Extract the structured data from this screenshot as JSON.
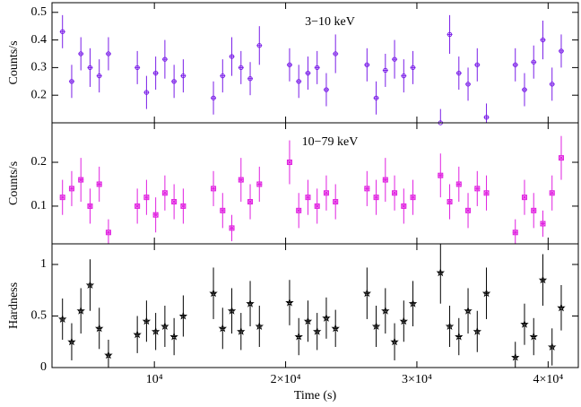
{
  "chart_data": [
    {
      "type": "scatter",
      "ylabel": "Counts/s",
      "annotation": "3−10 keV",
      "color": "#7a1ee8",
      "marker": "circle",
      "xlim": [
        2200,
        42300
      ],
      "ylim": [
        0.1,
        0.535
      ],
      "yticks": [
        0.2,
        0.3,
        0.4,
        0.5
      ],
      "x": [
        3000,
        3700,
        4400,
        5100,
        5800,
        6500,
        8700,
        9400,
        10100,
        10800,
        11500,
        12200,
        14500,
        15200,
        15900,
        16600,
        17300,
        18000,
        20300,
        21000,
        21700,
        22400,
        23100,
        23800,
        26200,
        26900,
        27600,
        28300,
        29000,
        29700,
        31800,
        32500,
        33200,
        33900,
        34600,
        35300,
        37500,
        38200,
        38900,
        39600,
        40300,
        41000
      ],
      "values": [
        0.43,
        0.25,
        0.35,
        0.3,
        0.27,
        0.35,
        0.3,
        0.21,
        0.28,
        0.33,
        0.25,
        0.27,
        0.19,
        0.27,
        0.34,
        0.3,
        0.26,
        0.38,
        0.31,
        0.25,
        0.28,
        0.3,
        0.22,
        0.35,
        0.31,
        0.19,
        0.29,
        0.33,
        0.27,
        0.3,
        0.1,
        0.42,
        0.28,
        0.24,
        0.31,
        0.12,
        0.31,
        0.22,
        0.32,
        0.4,
        0.24,
        0.36
      ],
      "errors": [
        0.06,
        0.06,
        0.06,
        0.07,
        0.06,
        0.06,
        0.06,
        0.06,
        0.06,
        0.07,
        0.06,
        0.06,
        0.06,
        0.06,
        0.07,
        0.06,
        0.06,
        0.07,
        0.06,
        0.06,
        0.06,
        0.06,
        0.06,
        0.07,
        0.06,
        0.06,
        0.06,
        0.07,
        0.06,
        0.06,
        0.05,
        0.07,
        0.06,
        0.06,
        0.06,
        0.05,
        0.06,
        0.06,
        0.06,
        0.07,
        0.06,
        0.06
      ]
    },
    {
      "type": "scatter",
      "ylabel": "Counts/s",
      "annotation": "10−79 keV",
      "color": "#e020e0",
      "marker": "square",
      "xlim": [
        2200,
        42300
      ],
      "ylim": [
        0.014,
        0.29
      ],
      "yticks": [
        0.1,
        0.2
      ],
      "x": [
        3000,
        3700,
        4400,
        5100,
        5800,
        6500,
        8700,
        9400,
        10100,
        10800,
        11500,
        12200,
        14500,
        15200,
        15900,
        16600,
        17300,
        18000,
        20300,
        21000,
        21700,
        22400,
        23100,
        23800,
        26200,
        26900,
        27600,
        28300,
        29000,
        29700,
        31800,
        32500,
        33200,
        33900,
        34600,
        35300,
        37500,
        38200,
        38900,
        39600,
        40300,
        41000
      ],
      "values": [
        0.12,
        0.14,
        0.16,
        0.1,
        0.15,
        0.04,
        0.1,
        0.12,
        0.08,
        0.13,
        0.11,
        0.1,
        0.14,
        0.09,
        0.05,
        0.16,
        0.11,
        0.15,
        0.2,
        0.09,
        0.12,
        0.1,
        0.13,
        0.11,
        0.14,
        0.12,
        0.16,
        0.13,
        0.1,
        0.12,
        0.17,
        0.11,
        0.15,
        0.09,
        0.14,
        0.13,
        0.04,
        0.12,
        0.09,
        0.06,
        0.13,
        0.21
      ],
      "errors": [
        0.04,
        0.04,
        0.05,
        0.04,
        0.04,
        0.03,
        0.04,
        0.04,
        0.04,
        0.04,
        0.04,
        0.04,
        0.04,
        0.04,
        0.03,
        0.05,
        0.04,
        0.04,
        0.05,
        0.04,
        0.04,
        0.04,
        0.04,
        0.04,
        0.04,
        0.04,
        0.05,
        0.04,
        0.04,
        0.04,
        0.05,
        0.04,
        0.04,
        0.04,
        0.04,
        0.04,
        0.03,
        0.04,
        0.04,
        0.03,
        0.04,
        0.05
      ]
    },
    {
      "type": "scatter",
      "ylabel": "Hardness",
      "xlabel": "Time (s)",
      "color": "#000000",
      "marker": "star",
      "xlim": [
        2200,
        42300
      ],
      "ylim": [
        0,
        1.2
      ],
      "yticks": [
        0,
        0.5,
        1
      ],
      "xticks": [
        {
          "value": 10000,
          "label": "10⁴"
        },
        {
          "value": 20000,
          "label": "2×10⁴"
        },
        {
          "value": 30000,
          "label": "3×10⁴"
        },
        {
          "value": 40000,
          "label": "4×10⁴"
        }
      ],
      "x": [
        3000,
        3700,
        4400,
        5100,
        5800,
        6500,
        8700,
        9400,
        10100,
        10800,
        11500,
        12200,
        14500,
        15200,
        15900,
        16600,
        17300,
        18000,
        20300,
        21000,
        21700,
        22400,
        23100,
        23800,
        26200,
        26900,
        27600,
        28300,
        29000,
        29700,
        31800,
        32500,
        33200,
        33900,
        34600,
        35300,
        37500,
        38200,
        38900,
        39600,
        40300,
        41000
      ],
      "values": [
        0.47,
        0.25,
        0.55,
        0.8,
        0.38,
        0.12,
        0.32,
        0.45,
        0.35,
        0.4,
        0.3,
        0.5,
        0.72,
        0.38,
        0.55,
        0.35,
        0.62,
        0.4,
        0.63,
        0.3,
        0.45,
        0.35,
        0.48,
        0.38,
        0.72,
        0.4,
        0.55,
        0.25,
        0.45,
        0.62,
        0.92,
        0.4,
        0.3,
        0.55,
        0.35,
        0.72,
        0.1,
        0.42,
        0.3,
        0.85,
        0.2,
        0.58
      ],
      "errors": [
        0.2,
        0.18,
        0.22,
        0.25,
        0.2,
        0.15,
        0.18,
        0.2,
        0.18,
        0.2,
        0.18,
        0.2,
        0.25,
        0.2,
        0.22,
        0.18,
        0.22,
        0.2,
        0.22,
        0.18,
        0.2,
        0.18,
        0.2,
        0.18,
        0.25,
        0.2,
        0.22,
        0.18,
        0.2,
        0.22,
        0.3,
        0.2,
        0.18,
        0.22,
        0.2,
        0.25,
        0.15,
        0.2,
        0.18,
        0.25,
        0.18,
        0.22
      ]
    }
  ]
}
